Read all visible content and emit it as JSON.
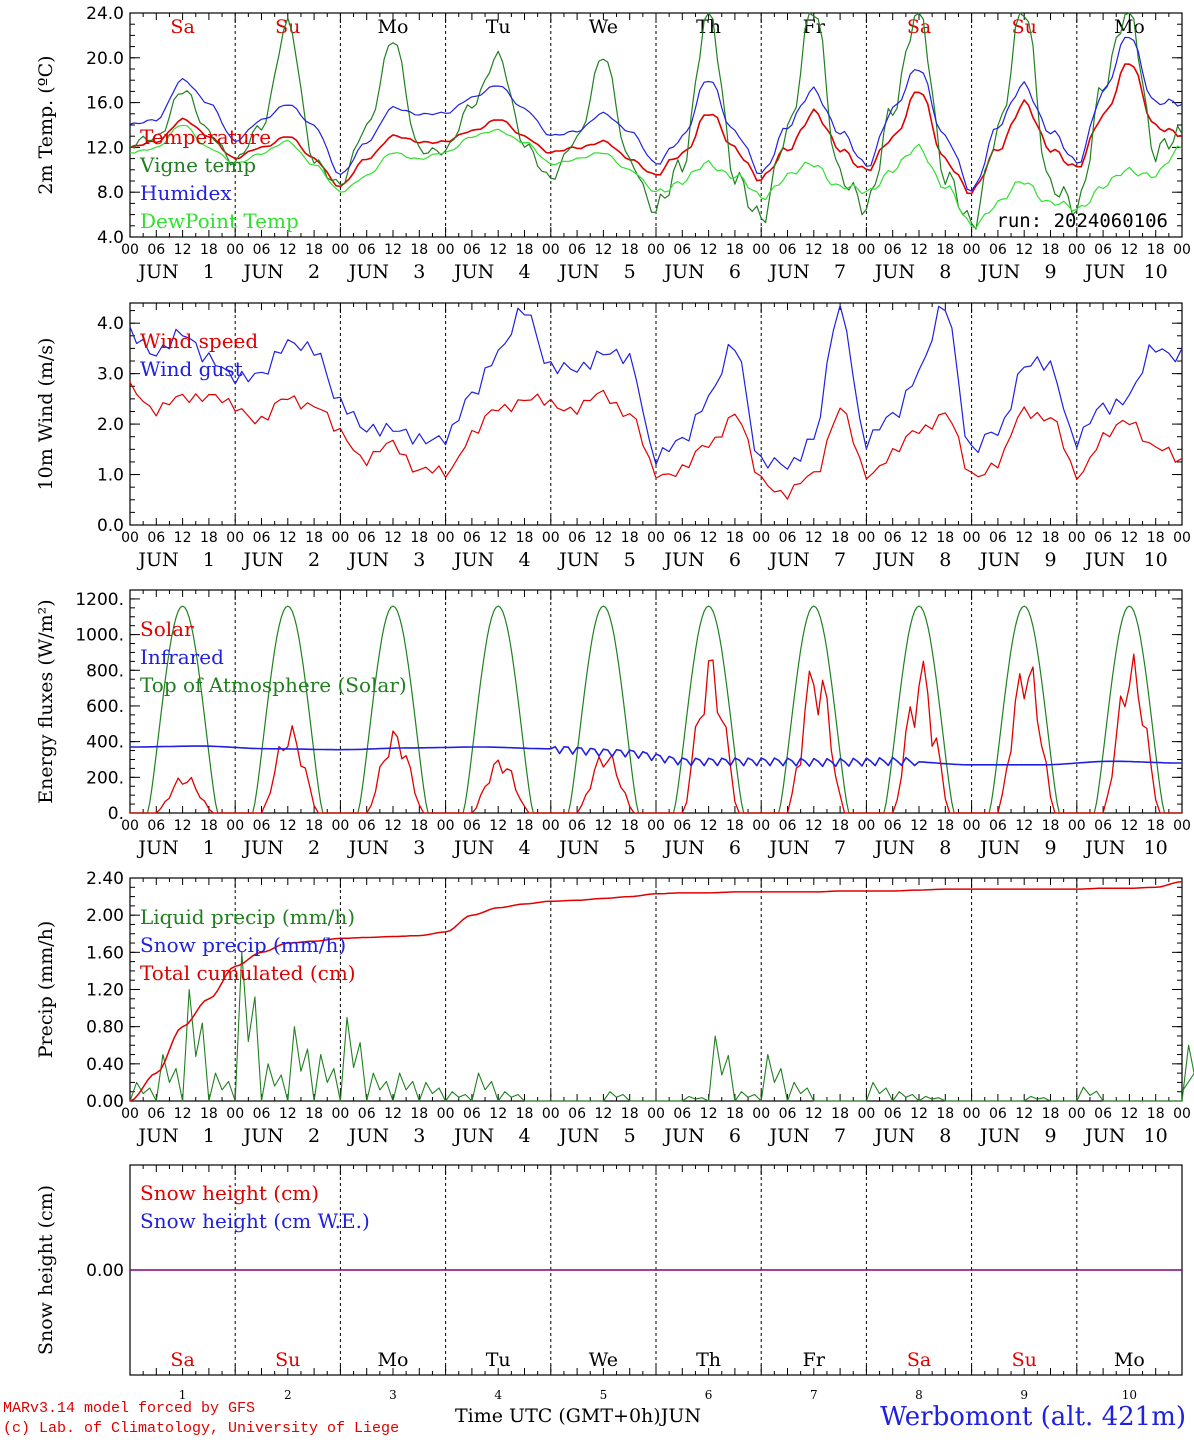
{
  "days": {
    "weekdays": [
      "Sa",
      "Su",
      "Mo",
      "Tu",
      "We",
      "Th",
      "Fr",
      "Sa",
      "Su",
      "Mo"
    ],
    "weekday_colors": [
      "#e00000",
      "#e00000",
      "#000000",
      "#000000",
      "#000000",
      "#000000",
      "#000000",
      "#e00000",
      "#e00000",
      "#000000"
    ],
    "month": "JUN",
    "numbers": [
      "1",
      "2",
      "3",
      "4",
      "5",
      "6",
      "7",
      "8",
      "9",
      "10"
    ],
    "hour_ticks": [
      "00",
      "06",
      "12",
      "18"
    ],
    "last_tick": "00"
  },
  "run_label": "run: 2024060106",
  "x_axis_label": "Time UTC (GMT+0h)",
  "x_axis_month": "JUN",
  "footer": {
    "line1": "MARv3.14 model forced by GFS",
    "line2": "(c) Lab. of Climatology, University of Liege"
  },
  "station": "Werbomont (alt. 421m)",
  "chart_data": [
    {
      "type": "line",
      "ylabel": "2m Temp. (ºC)",
      "ylim": [
        4,
        24
      ],
      "yticks": [
        "4.0",
        "8.0",
        "12.0",
        "16.0",
        "20.0",
        "24.0"
      ],
      "x_hours": [
        0,
        6,
        12,
        18,
        24,
        30,
        36,
        42,
        48,
        54,
        60,
        66,
        72,
        78,
        84,
        90,
        96,
        102,
        108,
        114,
        120,
        126,
        132,
        138,
        144,
        150,
        156,
        162,
        168,
        174,
        180,
        186,
        192,
        198,
        204,
        210,
        216,
        222,
        228,
        234,
        240
      ],
      "series": [
        {
          "name": "Temperature",
          "color": "#e00000",
          "values": [
            12.0,
            12.5,
            14.5,
            13.0,
            11.0,
            12.0,
            13.0,
            11.0,
            8.5,
            11.0,
            13.0,
            12.5,
            12.5,
            13.5,
            14.5,
            13.0,
            11.5,
            12.0,
            12.5,
            11.0,
            9.5,
            11.5,
            15.0,
            12.0,
            9.0,
            12.0,
            15.0,
            12.0,
            9.8,
            13.0,
            17.0,
            11.0,
            7.8,
            12.0,
            15.8,
            12.0,
            10.0,
            15.0,
            19.5,
            14.0,
            13.0
          ]
        },
        {
          "name": "Vigne temp",
          "color": "#208020",
          "values": [
            12.0,
            13.0,
            17.0,
            13.5,
            10.5,
            14.0,
            23.0,
            11.0,
            8.5,
            14.0,
            21.5,
            12.0,
            11.5,
            16.0,
            20.0,
            12.5,
            9.0,
            13.0,
            20.0,
            11.0,
            6.0,
            11.0,
            24.0,
            10.0,
            5.0,
            14.0,
            24.0,
            10.0,
            6.0,
            16.0,
            24.0,
            10.0,
            4.5,
            14.0,
            24.0,
            9.0,
            6.0,
            18.0,
            24.0,
            12.0,
            12.5
          ]
        },
        {
          "name": "Humidex",
          "color": "#2020e0",
          "values": [
            14.0,
            14.5,
            18.0,
            16.0,
            12.5,
            14.5,
            15.8,
            14.0,
            9.5,
            12.5,
            15.5,
            15.0,
            15.0,
            16.5,
            17.5,
            15.5,
            13.0,
            13.5,
            15.0,
            13.5,
            10.5,
            13.0,
            18.0,
            13.5,
            9.5,
            14.0,
            17.0,
            13.5,
            10.2,
            15.5,
            19.0,
            13.0,
            8.0,
            14.0,
            17.5,
            13.5,
            10.5,
            17.0,
            22.0,
            16.0,
            15.8
          ]
        },
        {
          "name": "DewPoint Temp",
          "color": "#30e030",
          "values": [
            11.5,
            12.0,
            14.0,
            12.0,
            10.5,
            11.5,
            12.5,
            10.5,
            8.0,
            9.5,
            11.5,
            11.0,
            11.5,
            13.0,
            13.5,
            12.5,
            10.5,
            11.0,
            11.5,
            10.0,
            8.0,
            9.0,
            10.5,
            9.5,
            7.5,
            9.5,
            10.5,
            8.5,
            8.0,
            10.0,
            12.0,
            8.5,
            5.0,
            7.0,
            9.0,
            7.0,
            6.5,
            8.5,
            10.0,
            9.5,
            12.0
          ]
        }
      ]
    },
    {
      "type": "line",
      "ylabel": "10m Wind (m/s)",
      "ylim": [
        0,
        4.4
      ],
      "yticks": [
        "0.0",
        "1.0",
        "2.0",
        "3.0",
        "4.0"
      ],
      "x_hours": [
        0,
        6,
        12,
        18,
        24,
        30,
        36,
        42,
        48,
        54,
        60,
        66,
        72,
        78,
        84,
        90,
        96,
        102,
        108,
        114,
        120,
        126,
        132,
        138,
        144,
        150,
        156,
        162,
        168,
        174,
        180,
        186,
        192,
        198,
        204,
        210,
        216,
        222,
        228,
        234,
        240
      ],
      "series": [
        {
          "name": "Wind speed",
          "color": "#e00000",
          "values": [
            2.7,
            2.3,
            2.5,
            2.6,
            2.3,
            2.1,
            2.5,
            2.4,
            1.8,
            1.3,
            1.6,
            1.1,
            1.0,
            1.8,
            2.3,
            2.5,
            2.4,
            2.3,
            2.6,
            2.2,
            1.0,
            1.1,
            1.6,
            2.2,
            0.9,
            0.6,
            1.0,
            2.3,
            1.0,
            1.4,
            1.9,
            2.2,
            1.0,
            1.2,
            2.3,
            2.1,
            1.0,
            1.7,
            2.1,
            1.5,
            1.3
          ]
        },
        {
          "name": "Wind gust",
          "color": "#2020e0",
          "values": [
            3.9,
            3.3,
            3.9,
            3.2,
            3.0,
            2.9,
            3.7,
            3.4,
            2.5,
            1.8,
            2.0,
            1.6,
            1.8,
            2.5,
            3.5,
            4.2,
            3.2,
            3.0,
            3.5,
            3.2,
            1.4,
            1.6,
            2.6,
            3.5,
            1.3,
            1.1,
            1.8,
            4.3,
            1.7,
            2.1,
            3.1,
            4.3,
            1.5,
            1.8,
            3.2,
            3.1,
            1.7,
            2.3,
            2.6,
            3.5,
            3.4
          ]
        }
      ]
    },
    {
      "type": "line",
      "ylabel": "Energy fluxes (W/m²)",
      "ylim": [
        0,
        1250
      ],
      "yticks": [
        "0.",
        "200.",
        "400.",
        "600.",
        "800.",
        "1000.",
        "1200."
      ],
      "series": [
        {
          "name": "Solar",
          "color": "#e00000",
          "day_peaks": [
            220,
            500,
            480,
            320,
            360,
            900,
            880,
            860,
            910,
            900
          ]
        },
        {
          "name": "Infrared",
          "color": "#2020e0",
          "values": [
            370,
            375,
            360,
            355,
            365,
            370,
            360,
            340,
            290,
            290,
            285,
            290,
            270,
            270,
            290,
            280
          ]
        },
        {
          "name": "Top of Atmosphere (Solar)",
          "color": "#208020",
          "peak": 1160
        }
      ]
    },
    {
      "type": "line",
      "ylabel": "Precip (mm/h)",
      "ylim": [
        0,
        2.4
      ],
      "yticks": [
        "0.00",
        "0.40",
        "0.80",
        "1.20",
        "1.60",
        "2.00",
        "2.40"
      ],
      "series": [
        {
          "name": "Liquid precip (mm/h)",
          "color": "#208020",
          "values": [
            0.2,
            0.5,
            1.2,
            0.3,
            1.6,
            0.4,
            0.8,
            0.5,
            0.9,
            0.3,
            0.3,
            0.2,
            0.1,
            0.3,
            0.1,
            0.0,
            0.0,
            0.0,
            0.1,
            0.0,
            0.0,
            0.05,
            0.7,
            0.1,
            0.5,
            0.2,
            0.0,
            0.0,
            0.2,
            0.1,
            0.05,
            0.0,
            0.0,
            0.0,
            0.05,
            0.0,
            0.15,
            0.0,
            0.0,
            0.0,
            0.6
          ]
        },
        {
          "name": "Snow precip (mm/h)",
          "color": "#2020e0",
          "values": []
        },
        {
          "name": "Total cumulated (cm)",
          "color": "#e00000",
          "x_hours": [
            0,
            6,
            12,
            18,
            24,
            30,
            36,
            42,
            48,
            54,
            60,
            66,
            72,
            78,
            84,
            90,
            96,
            102,
            108,
            114,
            120,
            126,
            132,
            138,
            144,
            150,
            156,
            162,
            168,
            174,
            180,
            186,
            192,
            198,
            204,
            210,
            216,
            222,
            228,
            234,
            240
          ],
          "values": [
            0.0,
            0.3,
            0.8,
            1.1,
            1.45,
            1.6,
            1.7,
            1.72,
            1.75,
            1.76,
            1.77,
            1.78,
            1.82,
            2.0,
            2.08,
            2.12,
            2.15,
            2.16,
            2.18,
            2.2,
            2.23,
            2.24,
            2.24,
            2.25,
            2.25,
            2.25,
            2.25,
            2.26,
            2.26,
            2.26,
            2.27,
            2.28,
            2.28,
            2.28,
            2.28,
            2.28,
            2.28,
            2.29,
            2.29,
            2.3,
            2.36
          ]
        }
      ]
    },
    {
      "type": "line",
      "ylabel": "Snow height (cm)",
      "yticks": [
        "0.00"
      ],
      "series": [
        {
          "name": "Snow height (cm)",
          "color": "#e00000",
          "values": [
            0,
            0
          ]
        },
        {
          "name": "Snow height (cm W.E.)",
          "color": "#2020e0",
          "values": [
            0,
            0
          ]
        }
      ]
    }
  ]
}
